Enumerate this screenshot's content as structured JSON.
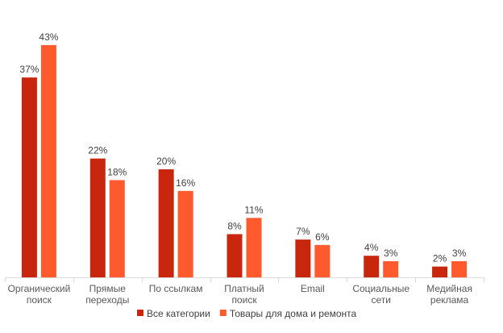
{
  "chart_data": {
    "type": "bar",
    "title": "",
    "xlabel": "",
    "ylabel": "",
    "unit": "%",
    "ylim": [
      0,
      45
    ],
    "grid": false,
    "legend_position": "bottom",
    "categories": [
      [
        "Органический",
        "поиск"
      ],
      [
        "Прямые",
        "переходы"
      ],
      [
        "По ссылкам"
      ],
      [
        "Платный",
        "поиск"
      ],
      [
        "Email"
      ],
      [
        "Социальные",
        "сети"
      ],
      [
        "Медийная",
        "реклама"
      ]
    ],
    "series": [
      {
        "name": "Все категории",
        "color": "#C9260E",
        "values": [
          37,
          22,
          20,
          8,
          7,
          4,
          2
        ]
      },
      {
        "name": "Товары для дома и ремонта",
        "color": "#FF5A2E",
        "values": [
          43,
          18,
          16,
          11,
          6,
          3,
          3
        ]
      }
    ]
  }
}
